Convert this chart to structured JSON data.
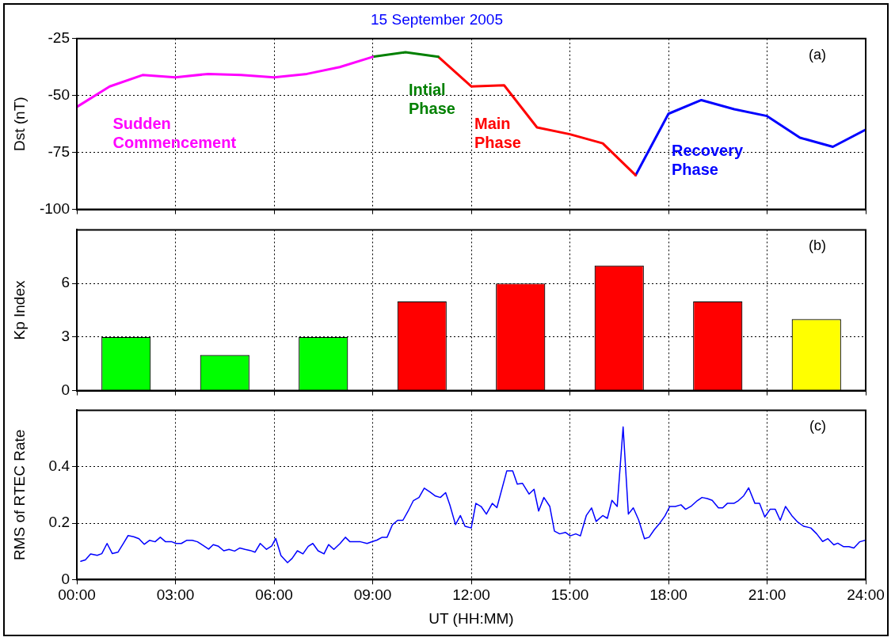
{
  "chart_data": [
    {
      "type": "line",
      "title": "15 September 2005",
      "ylabel": "Dst (nT)",
      "annotations": [
        "(a)"
      ],
      "xlim": [
        0,
        24
      ],
      "xticks": [
        0,
        3,
        6,
        9,
        12,
        15,
        18,
        21,
        24
      ],
      "ylim": [
        -100,
        -25
      ],
      "yticks": [
        -100,
        -75,
        -50,
        -25
      ],
      "grid": true,
      "legend": false,
      "tick_labels": "y",
      "marker": "none",
      "series": [
        {
          "name": "Sudden Commencement",
          "color": "#ff00ff",
          "x": [
            0,
            1,
            2,
            3,
            4,
            5,
            6,
            7,
            8,
            9
          ],
          "values": [
            -55,
            -46,
            -41,
            -42,
            -40.5,
            -41,
            -42,
            -40.5,
            -37.5,
            -33
          ]
        },
        {
          "name": "Intial Phase",
          "color": "#008000",
          "x": [
            9,
            10,
            11
          ],
          "values": [
            -33,
            -31,
            -33
          ]
        },
        {
          "name": "Main Phase",
          "color": "#ff0000",
          "x": [
            11,
            12,
            13,
            14,
            15,
            16,
            17
          ],
          "values": [
            -33,
            -46,
            -45.5,
            -64,
            -67,
            -71,
            -85
          ]
        },
        {
          "name": "Recovery Phase",
          "color": "#0000ff",
          "x": [
            17,
            18,
            19,
            20,
            21,
            22,
            23,
            24
          ],
          "values": [
            -85,
            -58,
            -52,
            -56,
            -59,
            -68.5,
            -72.5,
            -65
          ]
        }
      ]
    },
    {
      "type": "bar",
      "ylabel": "Kp Index",
      "annotations": [
        "(b)"
      ],
      "xlim": [
        0,
        24
      ],
      "xticks": [
        0,
        3,
        6,
        9,
        12,
        15,
        18,
        21,
        24
      ],
      "ylim": [
        0,
        9
      ],
      "yticks": [
        0,
        3,
        6
      ],
      "grid": true,
      "legend": false,
      "tick_labels": "y",
      "x": [
        1.5,
        4.5,
        7.5,
        10.5,
        13.5,
        16.5,
        19.5,
        22.5
      ],
      "values": [
        3,
        2,
        3,
        5,
        6,
        7,
        5,
        4
      ],
      "colors": [
        "#00ff00",
        "#00ff00",
        "#00ff00",
        "#ff0000",
        "#ff0000",
        "#ff0000",
        "#ff0000",
        "#ffff00"
      ]
    },
    {
      "type": "line",
      "xlabel": "UT (HH:MM)",
      "ylabel": "RMS of RTEC Rate",
      "annotations": [
        "(c)"
      ],
      "xlim": [
        0,
        24
      ],
      "xticks": [
        {
          "value": 0,
          "label": "00:00"
        },
        {
          "value": 3,
          "label": "03:00"
        },
        {
          "value": 6,
          "label": "06:00"
        },
        {
          "value": 9,
          "label": "09:00"
        },
        {
          "value": 12,
          "label": "12:00"
        },
        {
          "value": 15,
          "label": "15:00"
        },
        {
          "value": 18,
          "label": "18:00"
        },
        {
          "value": 21,
          "label": "21:00"
        },
        {
          "value": 24,
          "label": "24:00"
        }
      ],
      "ylim": [
        0,
        0.6
      ],
      "yticks": [
        0,
        0.2,
        0.4
      ],
      "grid": true,
      "legend": false,
      "marker": "none",
      "color": "#0000ff",
      "x": [
        0.12,
        0.26,
        0.42,
        0.62,
        0.76,
        0.92,
        1.08,
        1.25,
        1.41,
        1.56,
        1.73,
        1.89,
        2.05,
        2.21,
        2.38,
        2.54,
        2.7,
        2.89,
        3.02,
        3.18,
        3.34,
        3.51,
        3.67,
        3.83,
        4.01,
        4.15,
        4.31,
        4.47,
        4.63,
        4.8,
        4.96,
        5.12,
        5.28,
        5.42,
        5.58,
        5.77,
        5.93,
        6.05,
        6.21,
        6.41,
        6.55,
        6.71,
        6.88,
        7.04,
        7.18,
        7.34,
        7.52,
        7.66,
        7.82,
        8.01,
        8.17,
        8.31,
        8.63,
        8.83,
        9.0,
        9.13,
        9.29,
        9.44,
        9.6,
        9.76,
        9.92,
        10.08,
        10.24,
        10.41,
        10.57,
        10.75,
        10.91,
        11.06,
        11.22,
        11.35,
        11.52,
        11.67,
        11.81,
        12.0,
        12.14,
        12.3,
        12.46,
        12.64,
        12.78,
        13.08,
        13.26,
        13.4,
        13.56,
        13.76,
        13.91,
        14.05,
        14.21,
        14.39,
        14.53,
        14.69,
        14.87,
        15.01,
        15.18,
        15.32,
        15.5,
        15.66,
        15.8,
        16.0,
        16.14,
        16.28,
        16.44,
        16.62,
        16.78,
        16.93,
        17.09,
        17.27,
        17.41,
        17.57,
        17.73,
        17.89,
        18.04,
        18.21,
        18.38,
        18.52,
        18.7,
        18.88,
        19.02,
        19.18,
        19.33,
        19.52,
        19.65,
        19.79,
        19.99,
        20.13,
        20.29,
        20.44,
        20.63,
        20.77,
        20.93,
        21.09,
        21.25,
        21.4,
        21.56,
        21.75,
        21.93,
        22.11,
        22.33,
        22.51,
        22.69,
        22.85,
        23.03,
        23.15,
        23.32,
        23.49,
        23.64,
        23.82,
        24.0
      ],
      "values": [
        0.065,
        0.07,
        0.091,
        0.086,
        0.092,
        0.128,
        0.092,
        0.097,
        0.127,
        0.156,
        0.152,
        0.145,
        0.125,
        0.139,
        0.134,
        0.15,
        0.134,
        0.134,
        0.128,
        0.128,
        0.139,
        0.139,
        0.134,
        0.122,
        0.108,
        0.124,
        0.118,
        0.102,
        0.107,
        0.101,
        0.112,
        0.107,
        0.103,
        0.097,
        0.128,
        0.107,
        0.119,
        0.146,
        0.085,
        0.06,
        0.075,
        0.102,
        0.091,
        0.118,
        0.128,
        0.102,
        0.091,
        0.124,
        0.107,
        0.128,
        0.15,
        0.134,
        0.134,
        0.128,
        0.135,
        0.14,
        0.15,
        0.15,
        0.194,
        0.21,
        0.21,
        0.243,
        0.28,
        0.291,
        0.324,
        0.31,
        0.296,
        0.291,
        0.308,
        0.264,
        0.195,
        0.227,
        0.189,
        0.183,
        0.27,
        0.259,
        0.232,
        0.27,
        0.255,
        0.385,
        0.385,
        0.338,
        0.341,
        0.303,
        0.32,
        0.243,
        0.291,
        0.259,
        0.172,
        0.162,
        0.167,
        0.155,
        0.162,
        0.155,
        0.227,
        0.254,
        0.206,
        0.227,
        0.217,
        0.281,
        0.259,
        0.541,
        0.232,
        0.254,
        0.212,
        0.145,
        0.15,
        0.177,
        0.199,
        0.225,
        0.259,
        0.259,
        0.265,
        0.249,
        0.261,
        0.28,
        0.291,
        0.287,
        0.281,
        0.254,
        0.254,
        0.27,
        0.27,
        0.28,
        0.297,
        0.325,
        0.27,
        0.27,
        0.222,
        0.249,
        0.249,
        0.21,
        0.259,
        0.227,
        0.204,
        0.189,
        0.183,
        0.162,
        0.135,
        0.145,
        0.123,
        0.129,
        0.117,
        0.117,
        0.112,
        0.134,
        0.14
      ]
    }
  ]
}
